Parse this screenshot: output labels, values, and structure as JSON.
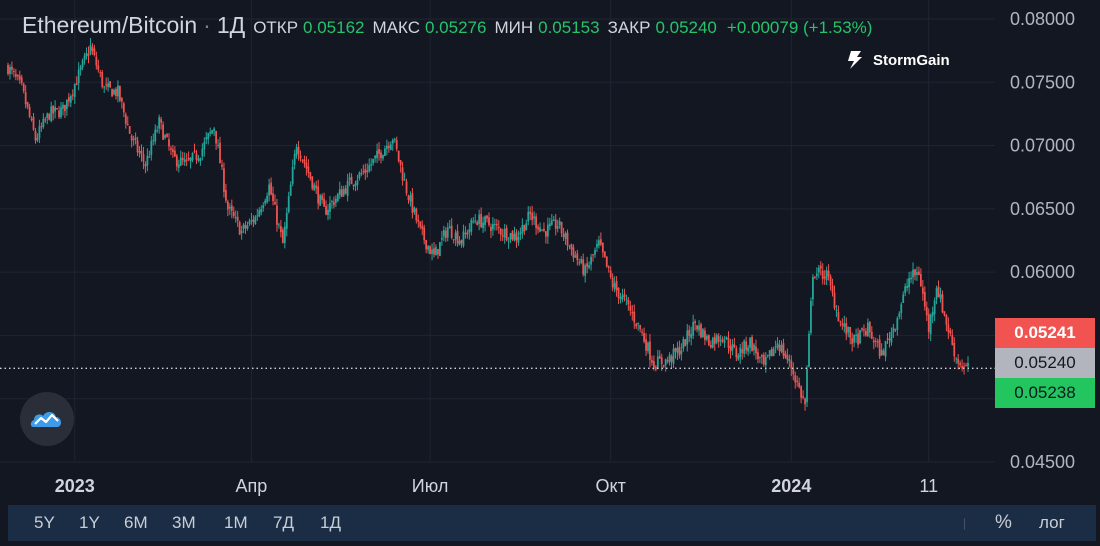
{
  "legend": {
    "symbol": "Ethereum/Bitcoin",
    "interval": "1Д",
    "open_label": "ОТКР",
    "open_value": "0.05162",
    "high_label": "МАКС",
    "high_value": "0.05276",
    "low_label": "МИН",
    "low_value": "0.05153",
    "close_label": "ЗАКР",
    "close_value": "0.05240",
    "change": "+0.00079 (+1.53%)"
  },
  "brand": {
    "name": "StormGain"
  },
  "price_tags": {
    "ask": "0.05241",
    "last": "0.05240",
    "bid": "0.05238"
  },
  "colors": {
    "background": "#131722",
    "up": "#26a69a",
    "down": "#ef5350",
    "ask_tag": "#f05350",
    "bid_tag": "#22c55e",
    "last_tag": "#b2b5be",
    "toolbar": "#1b2d44"
  },
  "toolbar": {
    "ranges": [
      "5Y",
      "1Y",
      "6M",
      "3M",
      "1M",
      "7Д",
      "1Д"
    ],
    "percent_label": "%",
    "log_label": "лог"
  },
  "chart_data": {
    "type": "candlestick",
    "title": "Ethereum/Bitcoin",
    "ylim": [
      0.045,
      0.0815
    ],
    "y_ticks": [
      "0.08000",
      "0.07500",
      "0.07000",
      "0.06500",
      "0.06000",
      "0.04500"
    ],
    "x_ticks": [
      "2023",
      "Апр",
      "Июл",
      "Окт",
      "2024",
      "11"
    ],
    "last_price": 0.0524,
    "grid": true,
    "close_series_points": [
      [
        "2022-11-28",
        0.0762
      ],
      [
        "2022-12-05",
        0.0745
      ],
      [
        "2022-12-12",
        0.0705
      ],
      [
        "2022-12-19",
        0.0725
      ],
      [
        "2022-12-26",
        0.0728
      ],
      [
        "2023-01-02",
        0.0752
      ],
      [
        "2023-01-09",
        0.0778
      ],
      [
        "2023-01-16",
        0.0745
      ],
      [
        "2023-01-23",
        0.0742
      ],
      [
        "2023-01-30",
        0.0705
      ],
      [
        "2023-02-06",
        0.0685
      ],
      [
        "2023-02-13",
        0.0718
      ],
      [
        "2023-02-20",
        0.069
      ],
      [
        "2023-02-27",
        0.0685
      ],
      [
        "2023-03-06",
        0.0695
      ],
      [
        "2023-03-13",
        0.0715
      ],
      [
        "2023-03-20",
        0.065
      ],
      [
        "2023-03-27",
        0.0632
      ],
      [
        "2023-04-03",
        0.0643
      ],
      [
        "2023-04-10",
        0.0668
      ],
      [
        "2023-04-17",
        0.0622
      ],
      [
        "2023-04-24",
        0.0702
      ],
      [
        "2023-05-01",
        0.0675
      ],
      [
        "2023-05-08",
        0.0648
      ],
      [
        "2023-05-15",
        0.066
      ],
      [
        "2023-05-22",
        0.0672
      ],
      [
        "2023-05-29",
        0.068
      ],
      [
        "2023-06-05",
        0.0693
      ],
      [
        "2023-06-12",
        0.0707
      ],
      [
        "2023-06-19",
        0.0665
      ],
      [
        "2023-06-26",
        0.0632
      ],
      [
        "2023-07-03",
        0.0612
      ],
      [
        "2023-07-10",
        0.0635
      ],
      [
        "2023-07-17",
        0.0625
      ],
      [
        "2023-07-24",
        0.0642
      ],
      [
        "2023-07-31",
        0.0638
      ],
      [
        "2023-08-07",
        0.0632
      ],
      [
        "2023-08-14",
        0.0628
      ],
      [
        "2023-08-21",
        0.0645
      ],
      [
        "2023-08-28",
        0.0632
      ],
      [
        "2023-09-04",
        0.0638
      ],
      [
        "2023-09-11",
        0.0618
      ],
      [
        "2023-09-18",
        0.06
      ],
      [
        "2023-09-25",
        0.0622
      ],
      [
        "2023-10-02",
        0.059
      ],
      [
        "2023-10-09",
        0.0575
      ],
      [
        "2023-10-16",
        0.0555
      ],
      [
        "2023-10-23",
        0.0528
      ],
      [
        "2023-10-30",
        0.053
      ],
      [
        "2023-11-06",
        0.054
      ],
      [
        "2023-11-13",
        0.056
      ],
      [
        "2023-11-20",
        0.0545
      ],
      [
        "2023-11-27",
        0.055
      ],
      [
        "2023-12-04",
        0.0535
      ],
      [
        "2023-12-11",
        0.0545
      ],
      [
        "2023-12-18",
        0.0525
      ],
      [
        "2023-12-25",
        0.0545
      ],
      [
        "2024-01-01",
        0.0525
      ],
      [
        "2024-01-08",
        0.0495
      ],
      [
        "2024-01-12",
        0.06
      ],
      [
        "2024-01-19",
        0.0598
      ],
      [
        "2024-01-26",
        0.056
      ],
      [
        "2024-02-02",
        0.0545
      ],
      [
        "2024-02-09",
        0.0555
      ],
      [
        "2024-02-16",
        0.0535
      ],
      [
        "2024-02-23",
        0.056
      ],
      [
        "2024-03-01",
        0.0595
      ],
      [
        "2024-03-06",
        0.06
      ],
      [
        "2024-03-11",
        0.0555
      ],
      [
        "2024-03-15",
        0.059
      ],
      [
        "2024-03-20",
        0.056
      ],
      [
        "2024-03-25",
        0.0532
      ],
      [
        "2024-03-29",
        0.0524
      ]
    ]
  }
}
